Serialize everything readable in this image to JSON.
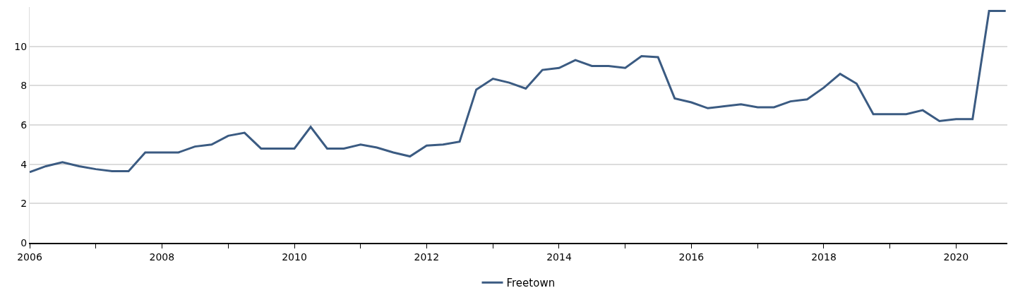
{
  "chart_data": {
    "type": "line",
    "x": [
      "2006-01",
      "2006-04",
      "2006-07",
      "2006-10",
      "2007-01",
      "2007-04",
      "2007-07",
      "2007-10",
      "2008-01",
      "2008-04",
      "2008-07",
      "2008-10",
      "2009-01",
      "2009-04",
      "2009-07",
      "2009-10",
      "2010-01",
      "2010-04",
      "2010-07",
      "2010-10",
      "2011-01",
      "2011-04",
      "2011-07",
      "2011-10",
      "2012-01",
      "2012-04",
      "2012-07",
      "2012-10",
      "2013-01",
      "2013-04",
      "2013-07",
      "2013-10",
      "2014-01",
      "2014-04",
      "2014-07",
      "2014-10",
      "2015-01",
      "2015-04",
      "2015-07",
      "2015-10",
      "2016-01",
      "2016-04",
      "2016-07",
      "2016-10",
      "2017-01",
      "2017-04",
      "2017-07",
      "2017-10",
      "2018-01",
      "2018-04",
      "2018-07",
      "2018-10",
      "2019-01",
      "2019-04",
      "2019-07",
      "2019-10",
      "2020-01",
      "2020-04",
      "2020-07",
      "2020-10"
    ],
    "series": [
      {
        "name": "Freetown",
        "color": "#3b5b82",
        "values": [
          3.6,
          3.9,
          4.1,
          3.9,
          3.75,
          3.65,
          3.65,
          4.6,
          4.6,
          4.6,
          4.9,
          5.0,
          5.45,
          5.6,
          4.8,
          4.8,
          4.8,
          5.9,
          4.8,
          4.8,
          5.0,
          4.85,
          4.6,
          4.4,
          4.95,
          5.0,
          5.15,
          7.8,
          8.35,
          8.15,
          7.85,
          8.8,
          8.9,
          9.3,
          9.0,
          9.0,
          8.9,
          9.5,
          9.45,
          7.35,
          7.15,
          6.85,
          6.95,
          7.05,
          6.9,
          6.9,
          7.2,
          7.3,
          7.9,
          8.6,
          8.1,
          6.55,
          6.55,
          6.55,
          6.75,
          6.2,
          6.3,
          6.3,
          11.8,
          11.8
        ]
      }
    ],
    "xlim": [
      "2006-01-01",
      "2020-10-10"
    ],
    "xticks": [
      {
        "value": "2006-01-01",
        "label": "2006"
      },
      {
        "value": "2007-01-01",
        "label": null
      },
      {
        "value": "2008-01-01",
        "label": "2008"
      },
      {
        "value": "2009-01-01",
        "label": null
      },
      {
        "value": "2010-01-01",
        "label": "2010"
      },
      {
        "value": "2011-01-01",
        "label": null
      },
      {
        "value": "2012-01-01",
        "label": "2012"
      },
      {
        "value": "2013-01-01",
        "label": null
      },
      {
        "value": "2014-01-01",
        "label": "2014"
      },
      {
        "value": "2015-01-01",
        "label": null
      },
      {
        "value": "2016-01-01",
        "label": "2016"
      },
      {
        "value": "2017-01-01",
        "label": null
      },
      {
        "value": "2018-01-01",
        "label": "2018"
      },
      {
        "value": "2019-01-01",
        "label": null
      },
      {
        "value": "2020-01-01",
        "label": "2020"
      }
    ],
    "ylim": [
      0,
      12
    ],
    "yticks": [
      0,
      2,
      4,
      6,
      8,
      10
    ],
    "grid": "y",
    "legend": "bottom",
    "marker": "none",
    "line_style": "solid"
  }
}
